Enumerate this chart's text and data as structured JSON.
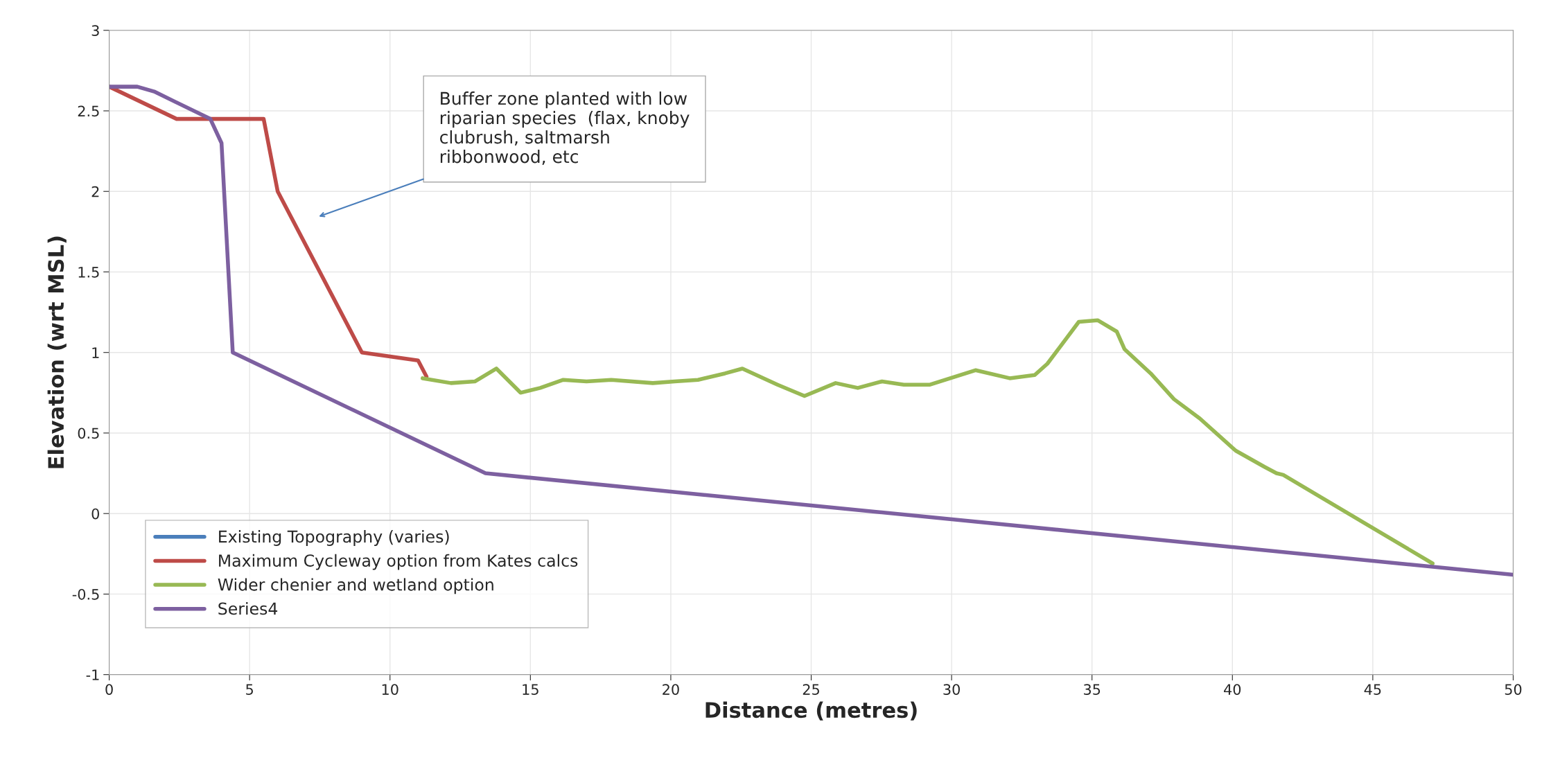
{
  "chart_data": {
    "type": "line",
    "xlabel": "Distance (metres)",
    "ylabel": "Elevation (wrt MSL)",
    "xlim": [
      0,
      50
    ],
    "ylim": [
      -1,
      3
    ],
    "xticks": [
      0,
      5,
      10,
      15,
      20,
      25,
      30,
      35,
      40,
      45,
      50
    ],
    "yticks": [
      -1,
      -0.5,
      0,
      0.5,
      1,
      1.5,
      2,
      2.5,
      3
    ],
    "grid": true,
    "legend": "bottom left",
    "marker": "none",
    "line_style": "solid",
    "annotations": [
      "Buffer zone planted with low\nriparian species  (flax, knoby\nclubrush, saltmarsh\nribbonwood, etc"
    ],
    "series": [
      {
        "name": "Existing Topography (varies)",
        "color": "#4a7ebb",
        "values": [
          null,
          null,
          null,
          null,
          null,
          null,
          null,
          null
        ]
      },
      {
        "name": "Maximum Cycleway option from Kates calcs",
        "color": "#be4b48",
        "x": [
          0,
          2.4,
          5.5,
          6,
          9,
          11,
          11.3
        ],
        "values": [
          2.65,
          2.45,
          2.45,
          2.0,
          1.0,
          0.95,
          0.85
        ]
      },
      {
        "name": "Wider chenier and wetland option",
        "color": "#98b954",
        "x": [
          11.16,
          12.17,
          13.02,
          13.79,
          14.65,
          15.35,
          16.17,
          17.0,
          17.88,
          19.36,
          20.14,
          20.97,
          21.93,
          22.55,
          23.8,
          24.76,
          25.87,
          26.66,
          27.52,
          28.3,
          29.23,
          30.85,
          32.07,
          32.96,
          33.41,
          34.53,
          35.2,
          35.88,
          36.16,
          37.09,
          37.92,
          38.84,
          40.12,
          41.14,
          41.57,
          41.81,
          47.13
        ],
        "values": [
          0.84,
          0.81,
          0.82,
          0.9,
          0.75,
          0.78,
          0.83,
          0.82,
          0.83,
          0.81,
          0.82,
          0.83,
          0.87,
          0.9,
          0.8,
          0.73,
          0.81,
          0.78,
          0.82,
          0.8,
          0.8,
          0.89,
          0.84,
          0.86,
          0.93,
          1.19,
          1.2,
          1.13,
          1.02,
          0.87,
          0.71,
          0.59,
          0.39,
          0.29,
          0.25,
          0.24,
          -0.31
        ]
      },
      {
        "name": "Series4",
        "color": "#7d60a0",
        "x": [
          0,
          1,
          1.6,
          3.6,
          4.0,
          4.4,
          13.4,
          50
        ],
        "values": [
          2.65,
          2.65,
          2.62,
          2.45,
          2.3,
          1.0,
          0.25,
          -0.38
        ]
      }
    ]
  }
}
